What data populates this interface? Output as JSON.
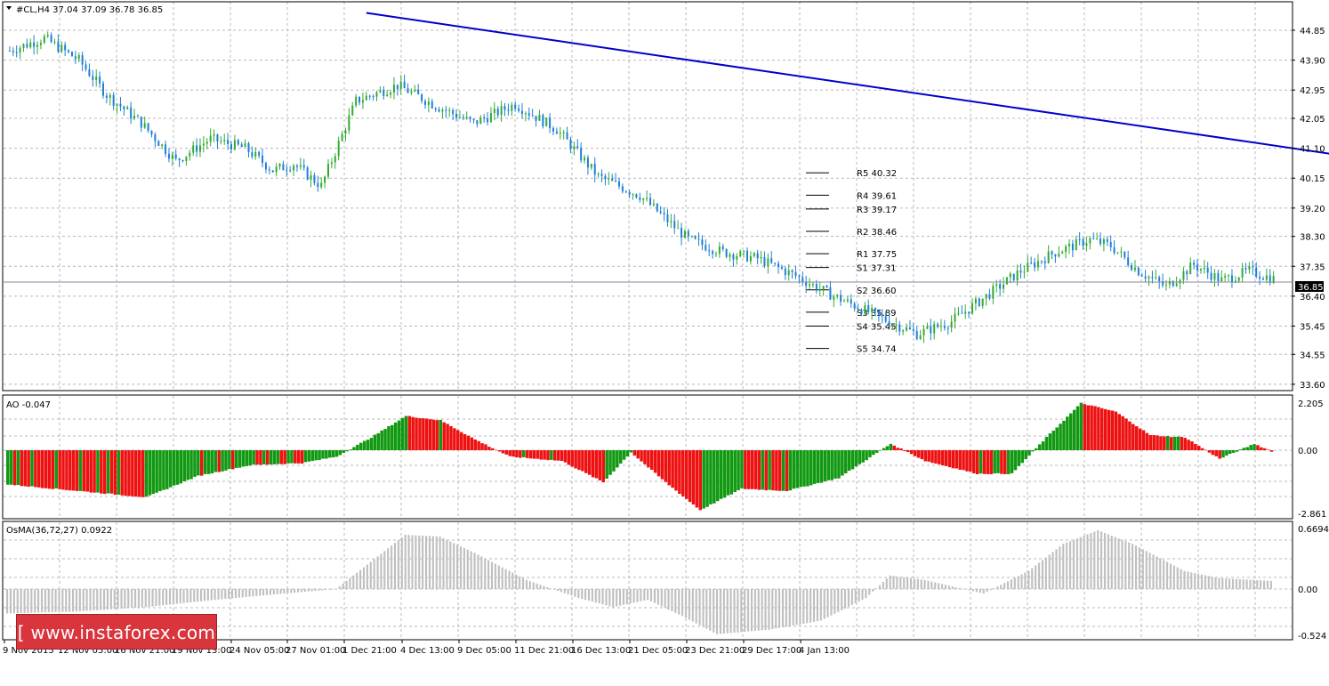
{
  "window": {
    "symbol_header": "#CL,H4  37.04 37.09 36.78 36.85"
  },
  "colors": {
    "bull": "#33aa33",
    "bear": "#1e7fd6",
    "trendline": "#0000cc",
    "ao_up": "#119911",
    "ao_down": "#ee1111",
    "osma": "#c0c0c0",
    "grid": "#b8b8b8",
    "price_tag_bg": "#000000"
  },
  "price_axis": {
    "ticks": [
      "44.85",
      "43.90",
      "42.95",
      "42.05",
      "41.10",
      "40.15",
      "39.20",
      "38.30",
      "37.35",
      "36.40",
      "35.45",
      "34.55",
      "33.60"
    ],
    "current_price": "36.85"
  },
  "time_axis": {
    "ticks": [
      "9 Nov 2015",
      "12 Nov 05:00",
      "16 Nov 21:00",
      "19 Nov 13:00",
      "24 Nov 05:00",
      "27 Nov 01:00",
      "1 Dec 21:00",
      "4 Dec 13:00",
      "9 Dec 05:00",
      "11 Dec 21:00",
      "16 Dec 13:00",
      "21 Dec 05:00",
      "23 Dec 21:00",
      "29 Dec 17:00",
      "4 Jan 13:00"
    ]
  },
  "pivot_levels": [
    {
      "label": "R5 40.32",
      "value": 40.32
    },
    {
      "label": "R4 39.61",
      "value": 39.61
    },
    {
      "label": "R3 39.17",
      "value": 39.17
    },
    {
      "label": "R2 38.46",
      "value": 38.46
    },
    {
      "label": "R1 37.75",
      "value": 37.75
    },
    {
      "label": "S1 37.31",
      "value": 37.31
    },
    {
      "label": "S2 36.60",
      "value": 36.6
    },
    {
      "label": "S3 35.89",
      "value": 35.89
    },
    {
      "label": "S4 35.45",
      "value": 35.45
    },
    {
      "label": "S5 34.74",
      "value": 34.74
    }
  ],
  "ao_panel": {
    "title": "AO -0.047",
    "ticks": [
      "2.205",
      "0.00",
      "-2.861"
    ]
  },
  "osma_panel": {
    "title": "OsMA(36,72,27) 0.0922",
    "ticks": [
      "0.6694",
      "0.00",
      "-0.524"
    ]
  },
  "watermark": {
    "text": "[ www.instaforex.com ]"
  },
  "chart_data": {
    "type": "candlestick",
    "symbol": "#CL",
    "timeframe": "H4",
    "price_range": [
      33.6,
      45.4
    ],
    "close_path": [
      [
        0,
        44.2
      ],
      [
        10,
        44.6
      ],
      [
        20,
        43.9
      ],
      [
        28,
        42.8
      ],
      [
        38,
        41.9
      ],
      [
        48,
        40.7
      ],
      [
        58,
        41.4
      ],
      [
        68,
        41.1
      ],
      [
        76,
        40.4
      ],
      [
        82,
        40.6
      ],
      [
        90,
        39.9
      ],
      [
        100,
        42.6
      ],
      [
        112,
        43.1
      ],
      [
        124,
        42.4
      ],
      [
        134,
        41.9
      ],
      [
        146,
        42.5
      ],
      [
        158,
        41.7
      ],
      [
        170,
        40.2
      ],
      [
        182,
        39.6
      ],
      [
        196,
        38.2
      ],
      [
        206,
        37.8
      ],
      [
        216,
        37.6
      ],
      [
        226,
        37.1
      ],
      [
        238,
        36.4
      ],
      [
        250,
        35.8
      ],
      [
        262,
        35.2
      ],
      [
        272,
        35.6
      ],
      [
        282,
        36.4
      ],
      [
        292,
        37.2
      ],
      [
        302,
        37.8
      ],
      [
        312,
        38.2
      ],
      [
        318,
        38.0
      ],
      [
        326,
        37.2
      ],
      [
        334,
        36.7
      ],
      [
        342,
        37.4
      ],
      [
        350,
        36.9
      ],
      [
        358,
        37.2
      ],
      [
        365,
        36.95
      ]
    ],
    "trendline": {
      "x1": 104,
      "y1": 45.4,
      "x2": 440,
      "y2": 40.0
    },
    "ao": {
      "ylim": [
        -2.861,
        2.205
      ],
      "values_path": [
        [
          0,
          -1.6
        ],
        [
          20,
          -1.9
        ],
        [
          40,
          -2.2
        ],
        [
          55,
          -1.2
        ],
        [
          70,
          -0.7
        ],
        [
          85,
          -0.6
        ],
        [
          95,
          -0.3
        ],
        [
          105,
          0.6
        ],
        [
          115,
          1.6
        ],
        [
          125,
          1.4
        ],
        [
          135,
          0.5
        ],
        [
          145,
          -0.3
        ],
        [
          160,
          -0.5
        ],
        [
          172,
          -1.5
        ],
        [
          180,
          -0.1
        ],
        [
          190,
          -1.5
        ],
        [
          200,
          -2.8
        ],
        [
          212,
          -1.8
        ],
        [
          225,
          -1.9
        ],
        [
          240,
          -1.3
        ],
        [
          255,
          0.3
        ],
        [
          265,
          -0.5
        ],
        [
          280,
          -1.1
        ],
        [
          290,
          -1.1
        ],
        [
          300,
          0.6
        ],
        [
          310,
          2.2
        ],
        [
          320,
          1.8
        ],
        [
          330,
          0.7
        ],
        [
          340,
          0.6
        ],
        [
          350,
          -0.4
        ],
        [
          360,
          0.3
        ],
        [
          365,
          -0.05
        ]
      ]
    },
    "osma": {
      "ylim": [
        -0.524,
        0.6694
      ],
      "values_path": [
        [
          0,
          -0.27
        ],
        [
          20,
          -0.25
        ],
        [
          40,
          -0.2
        ],
        [
          60,
          -0.12
        ],
        [
          80,
          -0.05
        ],
        [
          95,
          0.0
        ],
        [
          105,
          0.3
        ],
        [
          115,
          0.6
        ],
        [
          125,
          0.58
        ],
        [
          135,
          0.4
        ],
        [
          150,
          0.1
        ],
        [
          165,
          -0.1
        ],
        [
          175,
          -0.2
        ],
        [
          185,
          -0.12
        ],
        [
          195,
          -0.3
        ],
        [
          205,
          -0.5
        ],
        [
          220,
          -0.45
        ],
        [
          235,
          -0.35
        ],
        [
          248,
          -0.1
        ],
        [
          255,
          0.15
        ],
        [
          265,
          0.1
        ],
        [
          282,
          -0.05
        ],
        [
          295,
          0.2
        ],
        [
          305,
          0.5
        ],
        [
          315,
          0.65
        ],
        [
          325,
          0.5
        ],
        [
          340,
          0.2
        ],
        [
          350,
          0.12
        ],
        [
          365,
          0.09
        ]
      ]
    }
  }
}
